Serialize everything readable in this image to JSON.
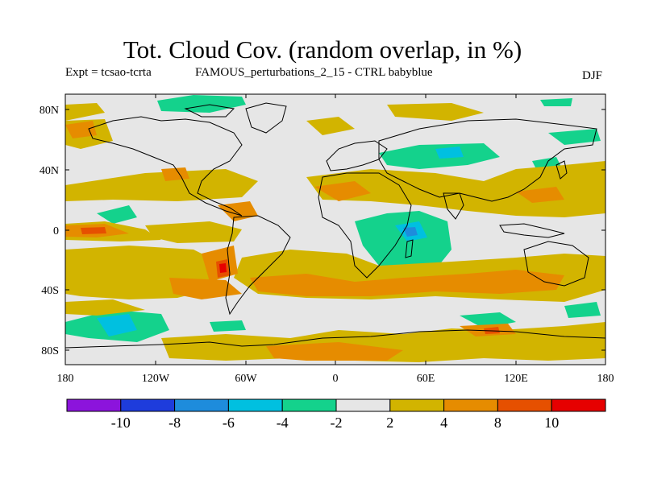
{
  "header": {
    "title": "Tot. Cloud Cov. (random overlap, in %)",
    "experiment": "Expt = tcsao-tcrta",
    "run_label": "FAMOUS_perturbations_2_15 - CTRL babyblue",
    "season": "DJF"
  },
  "map": {
    "lat_ticks": [
      "80N",
      "40N",
      "0",
      "40S",
      "80S"
    ],
    "lon_ticks": [
      "180",
      "120W",
      "60W",
      "0",
      "60E",
      "120E",
      "180"
    ],
    "lon_range": [
      -180,
      180
    ],
    "lat_range": [
      -90,
      90
    ],
    "background_value_color": "#e6e6e6"
  },
  "colorbar": {
    "colors": [
      "#8c14dc",
      "#1e3cdc",
      "#1e8cdc",
      "#00c0e0",
      "#14d28c",
      "#e6e6e6",
      "#d2b400",
      "#e68c00",
      "#e65000",
      "#e60000"
    ],
    "labels": [
      "-10",
      "-8",
      "-6",
      "-4",
      "-2",
      "2",
      "4",
      "8",
      "10"
    ]
  }
}
